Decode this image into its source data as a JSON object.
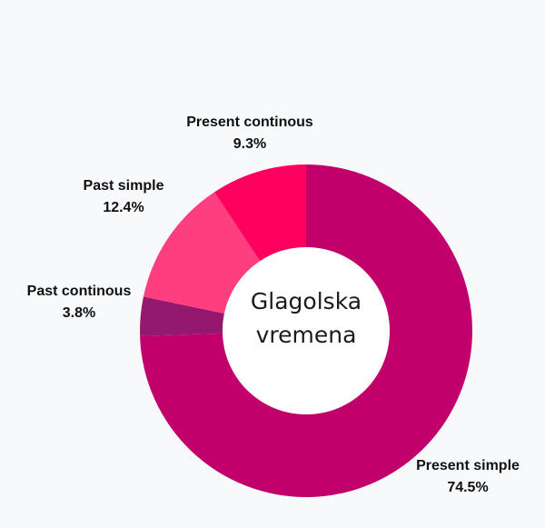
{
  "chart_data": {
    "type": "pie",
    "donut": true,
    "center_label": [
      "Glagolska",
      "vremena"
    ],
    "start_angle_deg": 0,
    "direction": "clockwise",
    "slices": [
      {
        "label": "Present simple",
        "value": 74.5,
        "value_label": "74.5%",
        "color": "#c2006b"
      },
      {
        "label": "Past continous",
        "value": 3.8,
        "value_label": "3.8%",
        "color": "#93186e"
      },
      {
        "label": "Past simple",
        "value": 12.4,
        "value_label": "12.4%",
        "color": "#ff3e7f"
      },
      {
        "label": "Present continous",
        "value": 9.3,
        "value_label": "9.3%",
        "color": "#ff005f"
      }
    ]
  }
}
